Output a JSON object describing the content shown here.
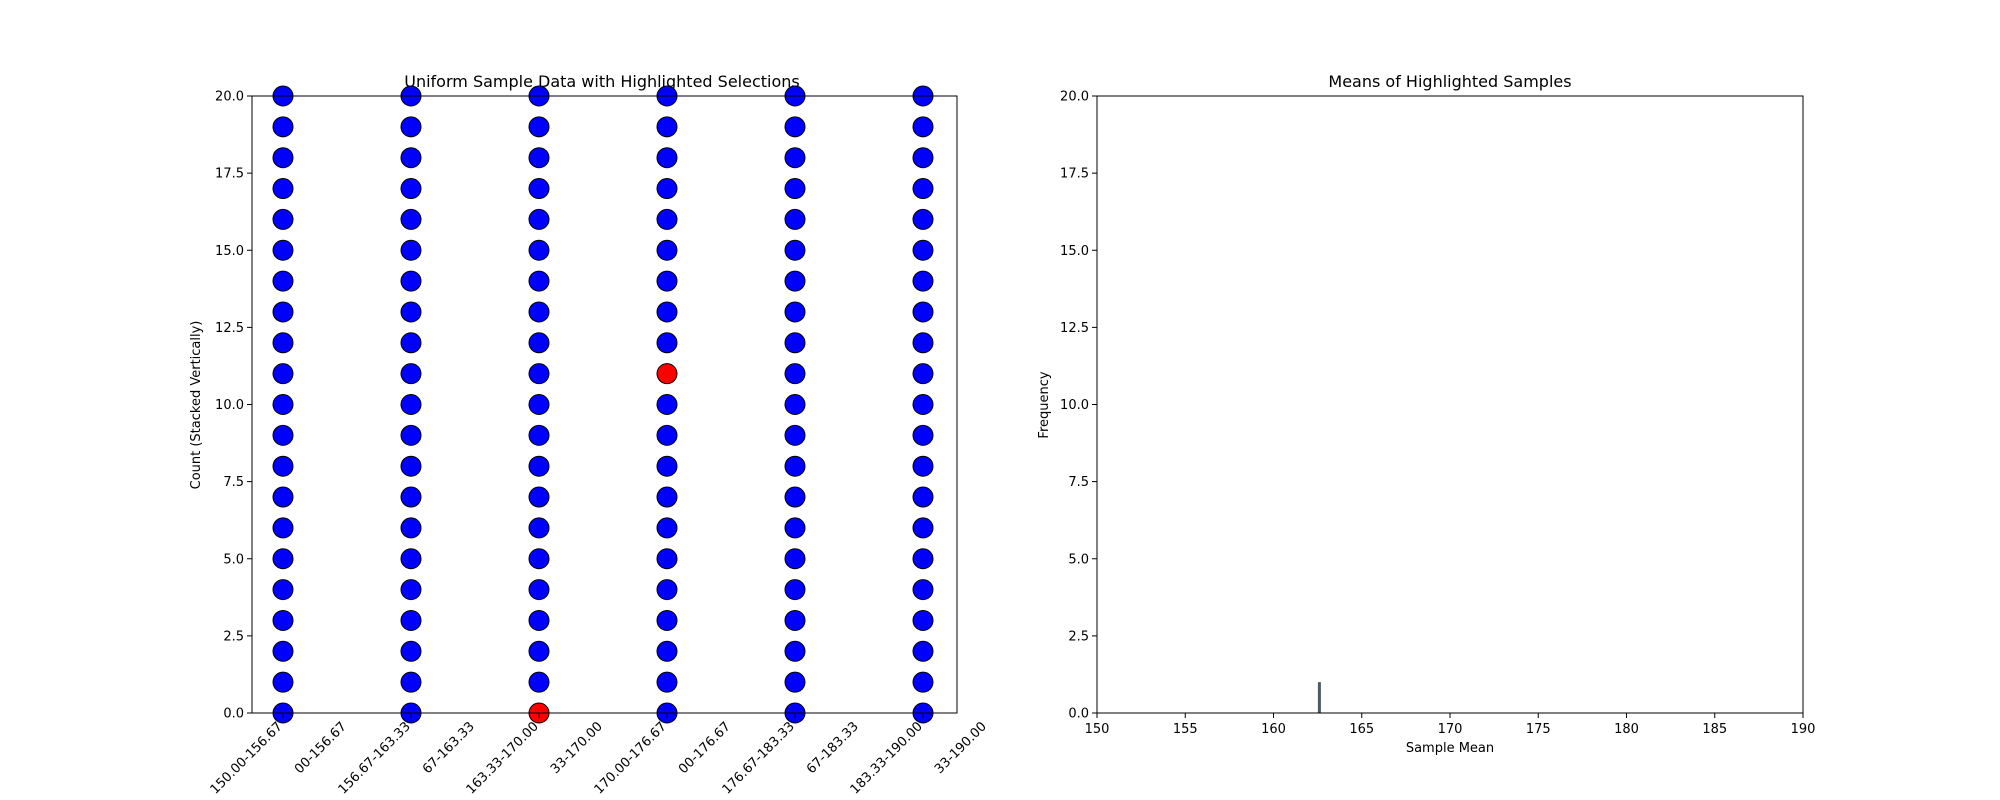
{
  "chart_data": [
    {
      "type": "scatter",
      "title": "Uniform Sample Data with Highlighted Selections",
      "xlabel": "",
      "ylabel": "Count (Stacked Vertically)",
      "ylim": [
        0,
        20
      ],
      "yticks": [
        "0.0",
        "2.5",
        "5.0",
        "7.5",
        "10.0",
        "12.5",
        "15.0",
        "17.5",
        "20.0"
      ],
      "xtick_labels": [
        "150.00-156.67",
        "00-156.67",
        "156.67-163.33",
        "67-163.33",
        "163.33-170.00",
        "33-170.00",
        "170.00-176.67",
        "00-176.67",
        "176.67-183.33",
        "67-183.33",
        "183.33-190.00",
        "33-190.00"
      ],
      "columns": [
        {
          "bin": "150.00-156.67",
          "counts": [
            0,
            1,
            2,
            3,
            4,
            5,
            6,
            7,
            8,
            9,
            10,
            11,
            12,
            13,
            14,
            15,
            16,
            17,
            18,
            19,
            20
          ],
          "highlighted": []
        },
        {
          "bin": "156.67-163.33",
          "counts": [
            0,
            1,
            2,
            3,
            4,
            5,
            6,
            7,
            8,
            9,
            10,
            11,
            12,
            13,
            14,
            15,
            16,
            17,
            18,
            19,
            20
          ],
          "highlighted": []
        },
        {
          "bin": "163.33-170.00",
          "counts": [
            0,
            1,
            2,
            3,
            4,
            5,
            6,
            7,
            8,
            9,
            10,
            11,
            12,
            13,
            14,
            15,
            16,
            17,
            18,
            19,
            20
          ],
          "highlighted": [
            0
          ]
        },
        {
          "bin": "170.00-176.67",
          "counts": [
            0,
            1,
            2,
            3,
            4,
            5,
            6,
            7,
            8,
            9,
            10,
            11,
            12,
            13,
            14,
            15,
            16,
            17,
            18,
            19,
            20
          ],
          "highlighted": [
            11
          ]
        },
        {
          "bin": "176.67-183.33",
          "counts": [
            0,
            1,
            2,
            3,
            4,
            5,
            6,
            7,
            8,
            9,
            10,
            11,
            12,
            13,
            14,
            15,
            16,
            17,
            18,
            19,
            20
          ],
          "highlighted": []
        },
        {
          "bin": "183.33-190.00",
          "counts": [
            0,
            1,
            2,
            3,
            4,
            5,
            6,
            7,
            8,
            9,
            10,
            11,
            12,
            13,
            14,
            15,
            16,
            17,
            18,
            19,
            20
          ],
          "highlighted": []
        }
      ],
      "colors": {
        "point": "#0000ff",
        "highlight": "#ff0000",
        "edge": "#000000"
      },
      "grid": false
    },
    {
      "type": "bar",
      "title": "Means of Highlighted Samples",
      "xlabel": "Sample Mean",
      "ylabel": "Frequency",
      "xlim": [
        150,
        190
      ],
      "ylim": [
        0,
        20
      ],
      "xticks": [
        "150",
        "155",
        "160",
        "165",
        "170",
        "175",
        "180",
        "185",
        "190"
      ],
      "yticks": [
        "0.0",
        "2.5",
        "5.0",
        "7.5",
        "10.0",
        "12.5",
        "15.0",
        "17.5",
        "20.0"
      ],
      "bars": [
        {
          "x": 162.6,
          "value": 1
        }
      ],
      "colors": {
        "bar": "#4a5a66"
      },
      "grid": false
    }
  ]
}
